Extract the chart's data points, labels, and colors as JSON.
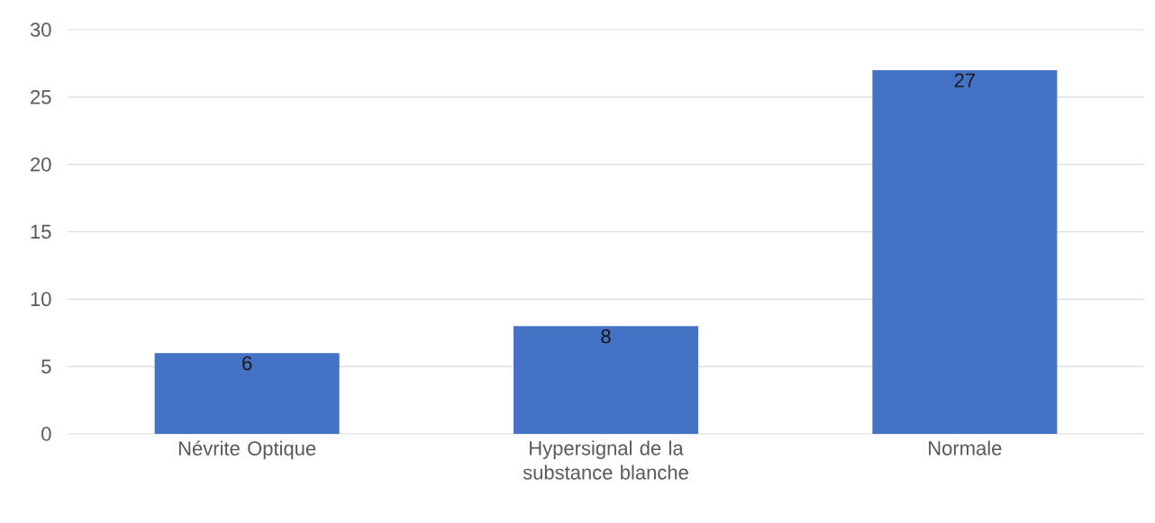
{
  "chart_data": {
    "type": "bar",
    "categories": [
      "Névrite Optique",
      "Hypersignal de la substance blanche",
      "Normale"
    ],
    "values": [
      6,
      8,
      27
    ],
    "color": "#4472c4",
    "ylim": [
      0,
      30
    ],
    "yticks": [
      0,
      5,
      10,
      15,
      20,
      25,
      30
    ],
    "grid": "y",
    "data_labels": true
  }
}
